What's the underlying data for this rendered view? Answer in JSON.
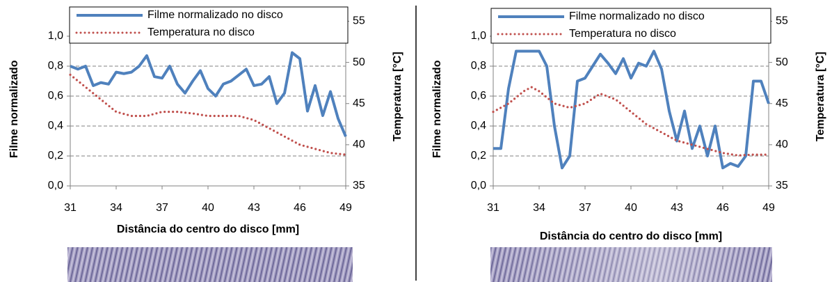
{
  "chart_data": [
    {
      "type": "line",
      "xlabel": "Distância do centro do disco [mm]",
      "ylabel": "Filme normalizado",
      "y2label": "Temperatura [°C]",
      "xlim": [
        31,
        49
      ],
      "xticks": [
        31,
        34,
        37,
        40,
        43,
        46,
        49
      ],
      "ylim": [
        0,
        1.1
      ],
      "yticks": [
        {
          "value": 0,
          "label": "0,0"
        },
        {
          "value": 0.2,
          "label": "0,2"
        },
        {
          "value": 0.4,
          "label": "0,4"
        },
        {
          "value": 0.6,
          "label": "0,6"
        },
        {
          "value": 0.8,
          "label": "0,8"
        },
        {
          "value": 1.0,
          "label": "1,0"
        }
      ],
      "y2lim": [
        35,
        55
      ],
      "y2ticks": [
        35,
        40,
        45,
        50,
        55
      ],
      "grid": true,
      "series": [
        {
          "name": "Filme normalizado no disco",
          "color": "#4f81bd",
          "style": "solid",
          "x": [
            31,
            31.5,
            32,
            32.5,
            33,
            33.5,
            34,
            34.5,
            35,
            35.5,
            36,
            36.5,
            37,
            37.5,
            38,
            38.5,
            39,
            39.5,
            40,
            40.5,
            41,
            41.5,
            42,
            42.5,
            43,
            43.5,
            44,
            44.5,
            45,
            45.5,
            46,
            46.5,
            47,
            47.5,
            48,
            48.5,
            49
          ],
          "values": [
            0.8,
            0.78,
            0.8,
            0.67,
            0.69,
            0.68,
            0.76,
            0.75,
            0.76,
            0.8,
            0.87,
            0.73,
            0.72,
            0.8,
            0.68,
            0.62,
            0.7,
            0.77,
            0.65,
            0.6,
            0.68,
            0.7,
            0.74,
            0.78,
            0.67,
            0.68,
            0.73,
            0.55,
            0.62,
            0.89,
            0.85,
            0.5,
            0.67,
            0.47,
            0.63,
            0.45,
            0.33
          ]
        },
        {
          "name": "Temperatura no disco",
          "color": "#c0504d",
          "style": "dotted",
          "axis": "y2",
          "x": [
            31,
            32,
            33,
            34,
            35,
            36,
            37,
            38,
            39,
            40,
            41,
            42,
            43,
            44,
            45,
            46,
            47,
            48,
            49
          ],
          "values": [
            48.5,
            47,
            45.5,
            44,
            43.5,
            43.5,
            44,
            44,
            43.8,
            43.5,
            43.5,
            43.5,
            43,
            42,
            41,
            40,
            39.5,
            39,
            38.8
          ]
        }
      ]
    },
    {
      "type": "line",
      "xlabel": "Distância do centro do disco [mm]",
      "ylabel": "Filme normalizado",
      "y2label": "Temperatura [°C]",
      "xlim": [
        31,
        49
      ],
      "xticks": [
        31,
        34,
        37,
        40,
        43,
        46,
        49
      ],
      "ylim": [
        0,
        1.1
      ],
      "yticks": [
        {
          "value": 0,
          "label": "0,0"
        },
        {
          "value": 0.2,
          "label": "0,2"
        },
        {
          "value": 0.4,
          "label": "0,4"
        },
        {
          "value": 0.6,
          "label": "0,6"
        },
        {
          "value": 0.8,
          "label": "0,8"
        },
        {
          "value": 1.0,
          "label": "1,0"
        }
      ],
      "y2lim": [
        35,
        55
      ],
      "y2ticks": [
        35,
        40,
        45,
        50,
        55
      ],
      "grid": true,
      "series": [
        {
          "name": "Filme normalizado no disco",
          "color": "#4f81bd",
          "style": "solid",
          "x": [
            31,
            31.5,
            32,
            32.5,
            33,
            33.5,
            34,
            34.5,
            35,
            35.5,
            36,
            36.5,
            37,
            37.5,
            38,
            38.5,
            39,
            39.5,
            40,
            40.5,
            41,
            41.5,
            42,
            42.5,
            43,
            43.5,
            44,
            44.5,
            45,
            45.5,
            46,
            46.5,
            47,
            47.5,
            48,
            48.5,
            49
          ],
          "values": [
            0.25,
            0.25,
            0.65,
            0.9,
            0.9,
            0.9,
            0.9,
            0.8,
            0.4,
            0.12,
            0.2,
            0.7,
            0.72,
            0.8,
            0.88,
            0.82,
            0.75,
            0.85,
            0.72,
            0.82,
            0.8,
            0.9,
            0.78,
            0.5,
            0.3,
            0.5,
            0.25,
            0.4,
            0.2,
            0.4,
            0.12,
            0.15,
            0.13,
            0.2,
            0.7,
            0.7,
            0.55
          ]
        },
        {
          "name": "Temperatura no disco",
          "color": "#c0504d",
          "style": "dotted",
          "axis": "y2",
          "x": [
            31,
            32,
            33,
            33.5,
            34,
            35,
            36,
            37,
            38,
            39,
            40,
            41,
            42,
            43,
            44,
            45,
            46,
            47,
            48,
            49
          ],
          "values": [
            44,
            45,
            46.5,
            47,
            46.5,
            45,
            44.5,
            45,
            46.2,
            45.5,
            44,
            42.5,
            41.5,
            40.5,
            40,
            39.5,
            39,
            38.7,
            38.8,
            38.8
          ]
        }
      ]
    }
  ]
}
